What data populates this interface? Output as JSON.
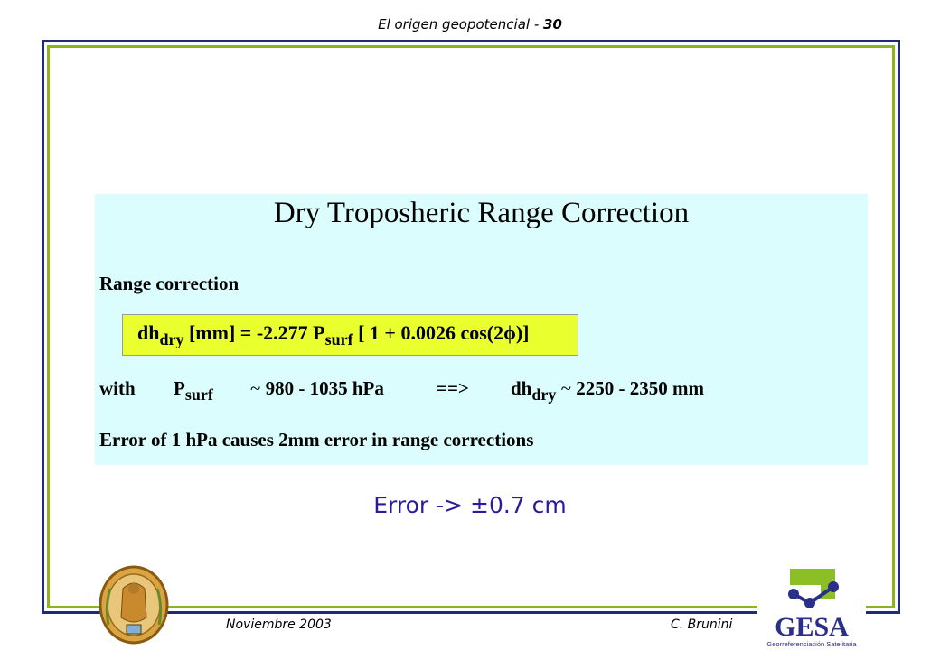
{
  "header": {
    "title": "El origen geopotencial - ",
    "page": "30"
  },
  "panel": {
    "title": "Dry Troposheric Range Correction",
    "range_label": "Range correction",
    "formula": {
      "dh": "dh",
      "dh_sub": "dry",
      "middle": "[mm] = -2.277 P",
      "p_sub": "surf",
      "tail": "[ 1 + 0.0026 cos(2ϕ)]"
    },
    "with_line": {
      "with": "with",
      "p": "P",
      "p_sub": "surf",
      "tilde1": "~",
      "range1": "980 - 1035 hPa",
      "arrow": "==>",
      "dh": "dh",
      "dh_sub": "dry",
      "tilde2": "~",
      "range2": "2250 - 2350 mm"
    },
    "error_text": "Error  of  1 hPa causes 2mm error in range corrections"
  },
  "error_line": "Error -> ±0.7 cm",
  "footer": {
    "date": "Noviembre 2003",
    "author": "C. Brunini"
  },
  "logos": {
    "gesa_text": "GESA",
    "gesa_tagline": "Georreferenciación Satelitaria"
  },
  "colors": {
    "frame_blue": "#1f2a7a",
    "frame_green": "#8cb41e",
    "panel_bg": "#dcfdfd",
    "formula_bg": "#eaff2e",
    "error_text": "#2b1a9a"
  }
}
